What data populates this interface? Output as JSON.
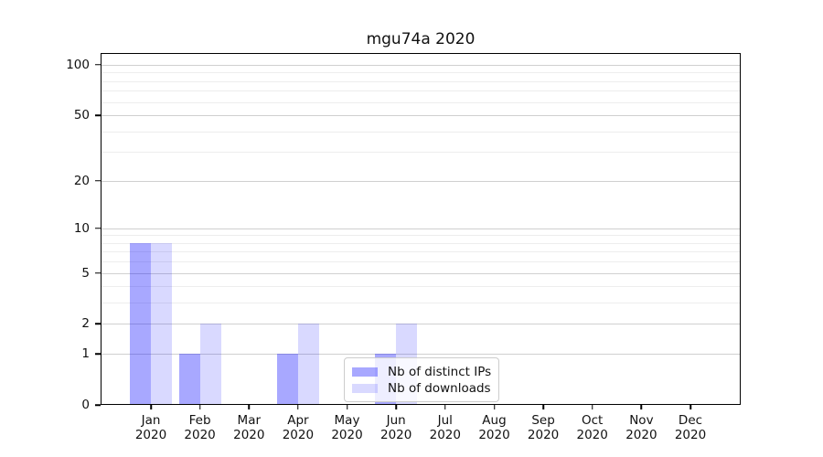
{
  "title": "mgu74a 2020",
  "chart_data": {
    "type": "bar",
    "title": "mgu74a 2020",
    "categories": [
      "Jan 2020",
      "Feb 2020",
      "Mar 2020",
      "Apr 2020",
      "May 2020",
      "Jun 2020",
      "Jul 2020",
      "Aug 2020",
      "Sep 2020",
      "Oct 2020",
      "Nov 2020",
      "Dec 2020"
    ],
    "series": [
      {
        "name": "Nb of distinct IPs",
        "color": "rgba(0,0,255,0.34)",
        "values": [
          8,
          1,
          0,
          1,
          0,
          1,
          0,
          0,
          0,
          0,
          0,
          0
        ]
      },
      {
        "name": "Nb of downloads",
        "color": "rgba(0,0,255,0.15)",
        "values": [
          8,
          2,
          0,
          2,
          0,
          2,
          0,
          0,
          0,
          0,
          0,
          0
        ]
      }
    ],
    "xlabel": "",
    "ylabel": "",
    "yscale": "log1p",
    "ylim": [
      0,
      117.5
    ],
    "y_major_ticks": [
      0,
      1,
      2,
      5,
      10,
      20,
      50,
      100
    ],
    "y_minor_ticks": [
      3,
      4,
      6,
      7,
      8,
      9,
      30,
      40,
      60,
      70,
      80,
      90
    ],
    "grid": "horizontal major+minor",
    "legend_position": "lower center"
  },
  "legend": {
    "items": [
      {
        "label": "Nb of distinct IPs",
        "color": "rgba(0,0,255,0.34)"
      },
      {
        "label": "Nb of downloads",
        "color": "rgba(0,0,255,0.15)"
      }
    ]
  },
  "colors": {
    "background": "#ffffff",
    "spine": "#000000",
    "grid_major": "#d0d0d0",
    "grid_minor": "#ededed",
    "text": "#111111",
    "bar_distinct_ips": "#a8a8f0",
    "bar_downloads": "#d8d8f8"
  }
}
